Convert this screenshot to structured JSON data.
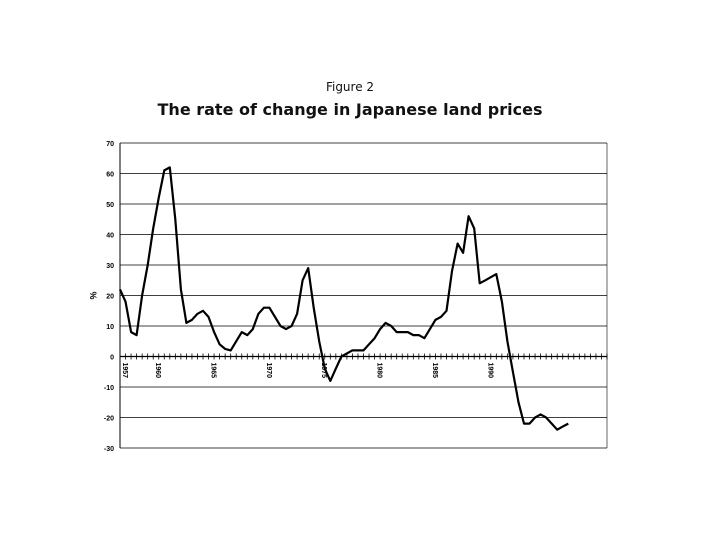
{
  "figure_label": "Figure 2",
  "chart_data": {
    "type": "line",
    "title": "The rate of change in Japanese land prices",
    "ylabel": "%",
    "xlabel": "",
    "ylim": [
      -30,
      70
    ],
    "yticks": [
      70,
      60,
      50,
      40,
      30,
      20,
      10,
      0,
      -10,
      -20,
      -30
    ],
    "xlim": [
      1957,
      2001
    ],
    "xtick_labels": [
      {
        "x": 1957,
        "label": "1957"
      },
      {
        "x": 1960,
        "label": "1960"
      },
      {
        "x": 1965,
        "label": "1965"
      },
      {
        "x": 1970,
        "label": "1970"
      },
      {
        "x": 1975,
        "label": "1975"
      },
      {
        "x": 1980,
        "label": "1980"
      },
      {
        "x": 1985,
        "label": "1985"
      },
      {
        "x": 1990,
        "label": "1990"
      }
    ],
    "grid": "horizontal",
    "legend": "none",
    "color": "#000000",
    "series": [
      {
        "points": [
          [
            1957,
            22
          ],
          [
            1957.5,
            18
          ],
          [
            1958,
            8
          ],
          [
            1958.5,
            7
          ],
          [
            1959,
            20
          ],
          [
            1959.5,
            30
          ],
          [
            1960,
            42
          ],
          [
            1960.5,
            52
          ],
          [
            1961,
            61
          ],
          [
            1961.5,
            62
          ],
          [
            1962,
            45
          ],
          [
            1962.5,
            22
          ],
          [
            1963,
            11
          ],
          [
            1963.5,
            12
          ],
          [
            1964,
            14
          ],
          [
            1964.5,
            15
          ],
          [
            1965,
            13
          ],
          [
            1965.5,
            8
          ],
          [
            1966,
            4
          ],
          [
            1966.5,
            2.5
          ],
          [
            1967,
            2
          ],
          [
            1967.5,
            5
          ],
          [
            1968,
            8
          ],
          [
            1968.5,
            7
          ],
          [
            1969,
            9
          ],
          [
            1969.5,
            14
          ],
          [
            1970,
            16
          ],
          [
            1970.5,
            16
          ],
          [
            1971,
            13
          ],
          [
            1971.5,
            10
          ],
          [
            1972,
            9
          ],
          [
            1972.5,
            10
          ],
          [
            1973,
            14
          ],
          [
            1973.5,
            25
          ],
          [
            1974,
            29
          ],
          [
            1974.5,
            16
          ],
          [
            1975,
            5
          ],
          [
            1975.5,
            -4
          ],
          [
            1976,
            -8
          ],
          [
            1976.5,
            -4
          ],
          [
            1977,
            0
          ],
          [
            1977.5,
            1
          ],
          [
            1978,
            2
          ],
          [
            1978.5,
            2
          ],
          [
            1979,
            2
          ],
          [
            1979.5,
            4
          ],
          [
            1980,
            6
          ],
          [
            1980.5,
            9
          ],
          [
            1981,
            11
          ],
          [
            1981.5,
            10
          ],
          [
            1982,
            8
          ],
          [
            1982.5,
            8
          ],
          [
            1983,
            8
          ],
          [
            1983.5,
            7
          ],
          [
            1984,
            7
          ],
          [
            1984.5,
            6
          ],
          [
            1985,
            9
          ],
          [
            1985.5,
            12
          ],
          [
            1986,
            13
          ],
          [
            1986.5,
            15
          ],
          [
            1987,
            28
          ],
          [
            1987.5,
            37
          ],
          [
            1988,
            34
          ],
          [
            1988.5,
            46
          ],
          [
            1989,
            42
          ],
          [
            1989.5,
            24
          ],
          [
            1990,
            25
          ],
          [
            1990.5,
            26
          ],
          [
            1991,
            27
          ],
          [
            1991.5,
            18
          ],
          [
            1992,
            5
          ],
          [
            1992.5,
            -5
          ],
          [
            1993,
            -15
          ],
          [
            1993.5,
            -22
          ],
          [
            1994,
            -22
          ],
          [
            1994.5,
            -20
          ],
          [
            1995,
            -19
          ],
          [
            1995.5,
            -20
          ],
          [
            1996,
            -22
          ],
          [
            1996.5,
            -24
          ],
          [
            1997,
            -23
          ],
          [
            1997.5,
            -22
          ]
        ]
      }
    ]
  }
}
